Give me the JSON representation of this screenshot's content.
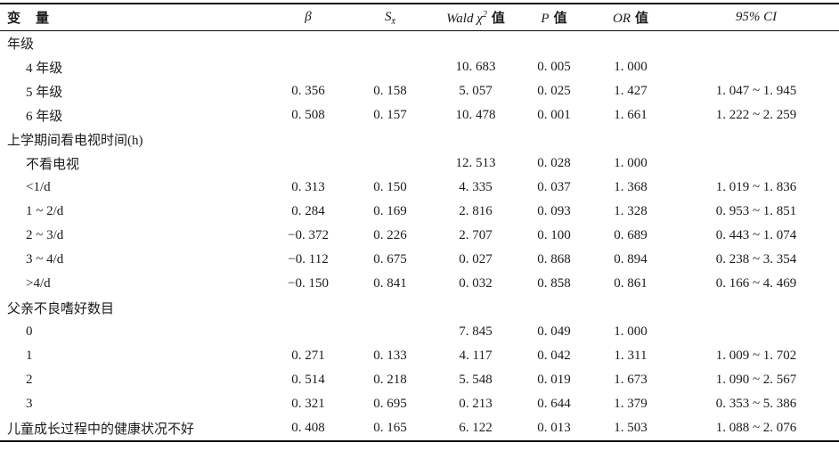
{
  "header": {
    "variable": "变　量",
    "beta": "β",
    "s_main": "S",
    "s_sub": "x̄",
    "wald_main": "Wald χ",
    "wald_sup": "2",
    "wald_suffix": "值",
    "p_main": "P",
    "p_suffix": "值",
    "or_main": "OR",
    "or_suffix": "值",
    "ci": "95% CI"
  },
  "rows": [
    {
      "variable": "年级",
      "indent": 0,
      "beta": "",
      "s": "",
      "wald": "",
      "p": "",
      "or": "",
      "ci": ""
    },
    {
      "variable": "4 年级",
      "indent": 1,
      "beta": "",
      "s": "",
      "wald": "10. 683",
      "p": "0. 005",
      "or": "1. 000",
      "ci": ""
    },
    {
      "variable": "5 年级",
      "indent": 1,
      "beta": "0. 356",
      "s": "0. 158",
      "wald": "5. 057",
      "p": "0. 025",
      "or": "1. 427",
      "ci": "1. 047 ~ 1. 945"
    },
    {
      "variable": "6 年级",
      "indent": 1,
      "beta": "0. 508",
      "s": "0. 157",
      "wald": "10. 478",
      "p": "0. 001",
      "or": "1. 661",
      "ci": "1. 222 ~ 2. 259"
    },
    {
      "variable": "上学期间看电视时间(h)",
      "indent": 0,
      "beta": "",
      "s": "",
      "wald": "",
      "p": "",
      "or": "",
      "ci": ""
    },
    {
      "variable": "不看电视",
      "indent": 1,
      "beta": "",
      "s": "",
      "wald": "12. 513",
      "p": "0. 028",
      "or": "1. 000",
      "ci": ""
    },
    {
      "variable": "<1/d",
      "indent": 1,
      "beta": "0. 313",
      "s": "0. 150",
      "wald": "4. 335",
      "p": "0. 037",
      "or": "1. 368",
      "ci": "1. 019 ~ 1. 836"
    },
    {
      "variable": "1 ~ 2/d",
      "indent": 1,
      "beta": "0. 284",
      "s": "0. 169",
      "wald": "2. 816",
      "p": "0. 093",
      "or": "1. 328",
      "ci": "0. 953 ~ 1. 851"
    },
    {
      "variable": "2 ~ 3/d",
      "indent": 1,
      "beta": "−0. 372",
      "s": "0. 226",
      "wald": "2. 707",
      "p": "0. 100",
      "or": "0. 689",
      "ci": "0. 443 ~ 1. 074"
    },
    {
      "variable": "3 ~ 4/d",
      "indent": 1,
      "beta": "−0. 112",
      "s": "0. 675",
      "wald": "0. 027",
      "p": "0. 868",
      "or": "0. 894",
      "ci": "0. 238 ~ 3. 354"
    },
    {
      "variable": ">4/d",
      "indent": 1,
      "beta": "−0. 150",
      "s": "0. 841",
      "wald": "0. 032",
      "p": "0. 858",
      "or": "0. 861",
      "ci": "0. 166 ~ 4. 469"
    },
    {
      "variable": "父亲不良嗜好数目",
      "indent": 0,
      "beta": "",
      "s": "",
      "wald": "",
      "p": "",
      "or": "",
      "ci": ""
    },
    {
      "variable": "0",
      "indent": 1,
      "beta": "",
      "s": "",
      "wald": "7. 845",
      "p": "0. 049",
      "or": "1. 000",
      "ci": ""
    },
    {
      "variable": "1",
      "indent": 1,
      "beta": "0. 271",
      "s": "0. 133",
      "wald": "4. 117",
      "p": "0. 042",
      "or": "1. 311",
      "ci": "1. 009 ~ 1. 702"
    },
    {
      "variable": "2",
      "indent": 1,
      "beta": "0. 514",
      "s": "0. 218",
      "wald": "5. 548",
      "p": "0. 019",
      "or": "1. 673",
      "ci": "1. 090 ~ 2. 567"
    },
    {
      "variable": "3",
      "indent": 1,
      "beta": "0. 321",
      "s": "0. 695",
      "wald": "0. 213",
      "p": "0. 644",
      "or": "1. 379",
      "ci": "0. 353 ~ 5. 386"
    },
    {
      "variable": "儿童成长过程中的健康状况不好",
      "indent": 0,
      "beta": "0. 408",
      "s": "0. 165",
      "wald": "6. 122",
      "p": "0. 013",
      "or": "1. 503",
      "ci": "1. 088 ~ 2. 076"
    }
  ]
}
